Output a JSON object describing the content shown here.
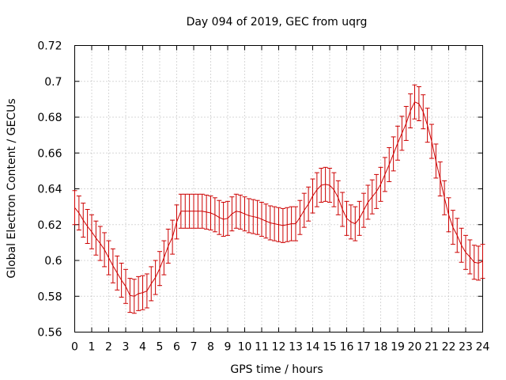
{
  "chart_data": {
    "type": "line",
    "title": "Day 094 of 2019, GEC from uqrg",
    "xlabel": "GPS time / hours",
    "ylabel": "Global Electron Content / GECUs",
    "xlim": [
      0,
      24
    ],
    "ylim": [
      0.56,
      0.72
    ],
    "x_ticks": [
      0,
      1,
      2,
      3,
      4,
      5,
      6,
      7,
      8,
      9,
      10,
      11,
      12,
      13,
      14,
      15,
      16,
      17,
      18,
      19,
      20,
      21,
      22,
      23,
      24
    ],
    "y_ticks": [
      0.56,
      0.58,
      0.6,
      0.62,
      0.64,
      0.66,
      0.68,
      0.7,
      0.72
    ],
    "y_tick_labels": [
      "0.56",
      "0.58",
      "0.6",
      "0.62",
      "0.64",
      "0.66",
      "0.68",
      "0.7",
      "0.72"
    ],
    "grid": true,
    "series": [
      {
        "name": "GEC",
        "color": "#cc0000",
        "error_bar": 0.0095,
        "x": [
          0,
          0.25,
          0.5,
          0.75,
          1,
          1.25,
          1.5,
          1.75,
          2,
          2.25,
          2.5,
          2.75,
          3,
          3.25,
          3.5,
          3.75,
          4,
          4.25,
          4.5,
          4.75,
          5,
          5.25,
          5.5,
          5.75,
          6,
          6.25,
          6.5,
          6.75,
          7,
          7.25,
          7.5,
          7.75,
          8,
          8.25,
          8.5,
          8.75,
          9,
          9.25,
          9.5,
          9.75,
          10,
          10.25,
          10.5,
          10.75,
          11,
          11.25,
          11.5,
          11.75,
          12,
          12.25,
          12.5,
          12.75,
          13,
          13.25,
          13.5,
          13.75,
          14,
          14.25,
          14.5,
          14.75,
          15,
          15.25,
          15.5,
          15.75,
          16,
          16.25,
          16.5,
          16.75,
          17,
          17.25,
          17.5,
          17.75,
          18,
          18.25,
          18.5,
          18.75,
          19,
          19.25,
          19.5,
          19.75,
          20,
          20.25,
          20.5,
          20.75,
          21,
          21.25,
          21.5,
          21.75,
          22,
          22.25,
          22.5,
          22.75,
          23,
          23.25,
          23.5,
          23.75,
          24
        ],
        "y": [
          0.6295,
          0.6265,
          0.6225,
          0.619,
          0.616,
          0.6125,
          0.6095,
          0.606,
          0.6015,
          0.597,
          0.593,
          0.589,
          0.5855,
          0.5805,
          0.58,
          0.5815,
          0.582,
          0.583,
          0.587,
          0.5905,
          0.5955,
          0.6015,
          0.608,
          0.613,
          0.6215,
          0.6275,
          0.6275,
          0.6275,
          0.6275,
          0.6275,
          0.6275,
          0.627,
          0.6265,
          0.6255,
          0.624,
          0.623,
          0.6235,
          0.626,
          0.6275,
          0.627,
          0.626,
          0.625,
          0.6245,
          0.624,
          0.623,
          0.622,
          0.621,
          0.6205,
          0.62,
          0.6195,
          0.62,
          0.6205,
          0.6205,
          0.624,
          0.628,
          0.6315,
          0.636,
          0.6395,
          0.642,
          0.6425,
          0.642,
          0.6395,
          0.635,
          0.6285,
          0.6235,
          0.6215,
          0.6205,
          0.6235,
          0.628,
          0.6325,
          0.6355,
          0.6385,
          0.6425,
          0.648,
          0.6535,
          0.6595,
          0.6655,
          0.671,
          0.6765,
          0.6835,
          0.6885,
          0.6875,
          0.683,
          0.6755,
          0.6665,
          0.6555,
          0.6455,
          0.635,
          0.6255,
          0.6185,
          0.614,
          0.6085,
          0.6045,
          0.602,
          0.599,
          0.5985,
          0.5995
        ]
      }
    ]
  }
}
